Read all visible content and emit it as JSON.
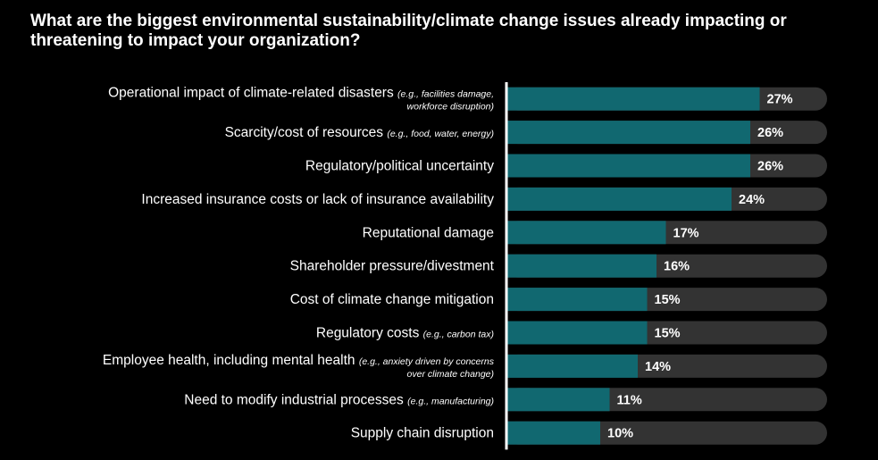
{
  "chart_data": {
    "type": "bar",
    "orientation": "horizontal",
    "title": "What are the biggest environmental sustainability/climate change issues already impacting or threatening to impact your organization?",
    "xlim": [
      0,
      100
    ],
    "grid": false,
    "legend": "none",
    "colors": {
      "bar": "#116870",
      "track": "#333333",
      "axis": "#ffffff",
      "background": "#000000",
      "text": "#ffffff"
    },
    "categories": [
      {
        "main": "Operational impact of climate-related disasters",
        "note": [
          "(e.g., facilities damage,",
          "workforce disruption)"
        ]
      },
      {
        "main": "Scarcity/cost of resources",
        "note": [
          "(e.g., food, water, energy)"
        ]
      },
      {
        "main": "Regulatory/political uncertainty",
        "note": []
      },
      {
        "main": "Increased insurance costs or lack of insurance availability",
        "note": []
      },
      {
        "main": "Reputational damage",
        "note": []
      },
      {
        "main": "Shareholder pressure/divestment",
        "note": []
      },
      {
        "main": "Cost of climate change mitigation",
        "note": []
      },
      {
        "main": "Regulatory costs",
        "note": [
          "(e.g., carbon tax)"
        ]
      },
      {
        "main": "Employee health, including mental health",
        "note": [
          "(e.g., anxiety driven by concerns",
          "over climate change)"
        ]
      },
      {
        "main": "Need to modify industrial processes",
        "note": [
          "(e.g., manufacturing)"
        ]
      },
      {
        "main": "Supply chain disruption",
        "note": []
      }
    ],
    "values": [
      27,
      26,
      26,
      24,
      17,
      16,
      15,
      15,
      14,
      11,
      10
    ],
    "value_labels": [
      "27%",
      "26%",
      "26%",
      "24%",
      "17%",
      "16%",
      "15%",
      "15%",
      "14%",
      "11%",
      "10%"
    ]
  }
}
